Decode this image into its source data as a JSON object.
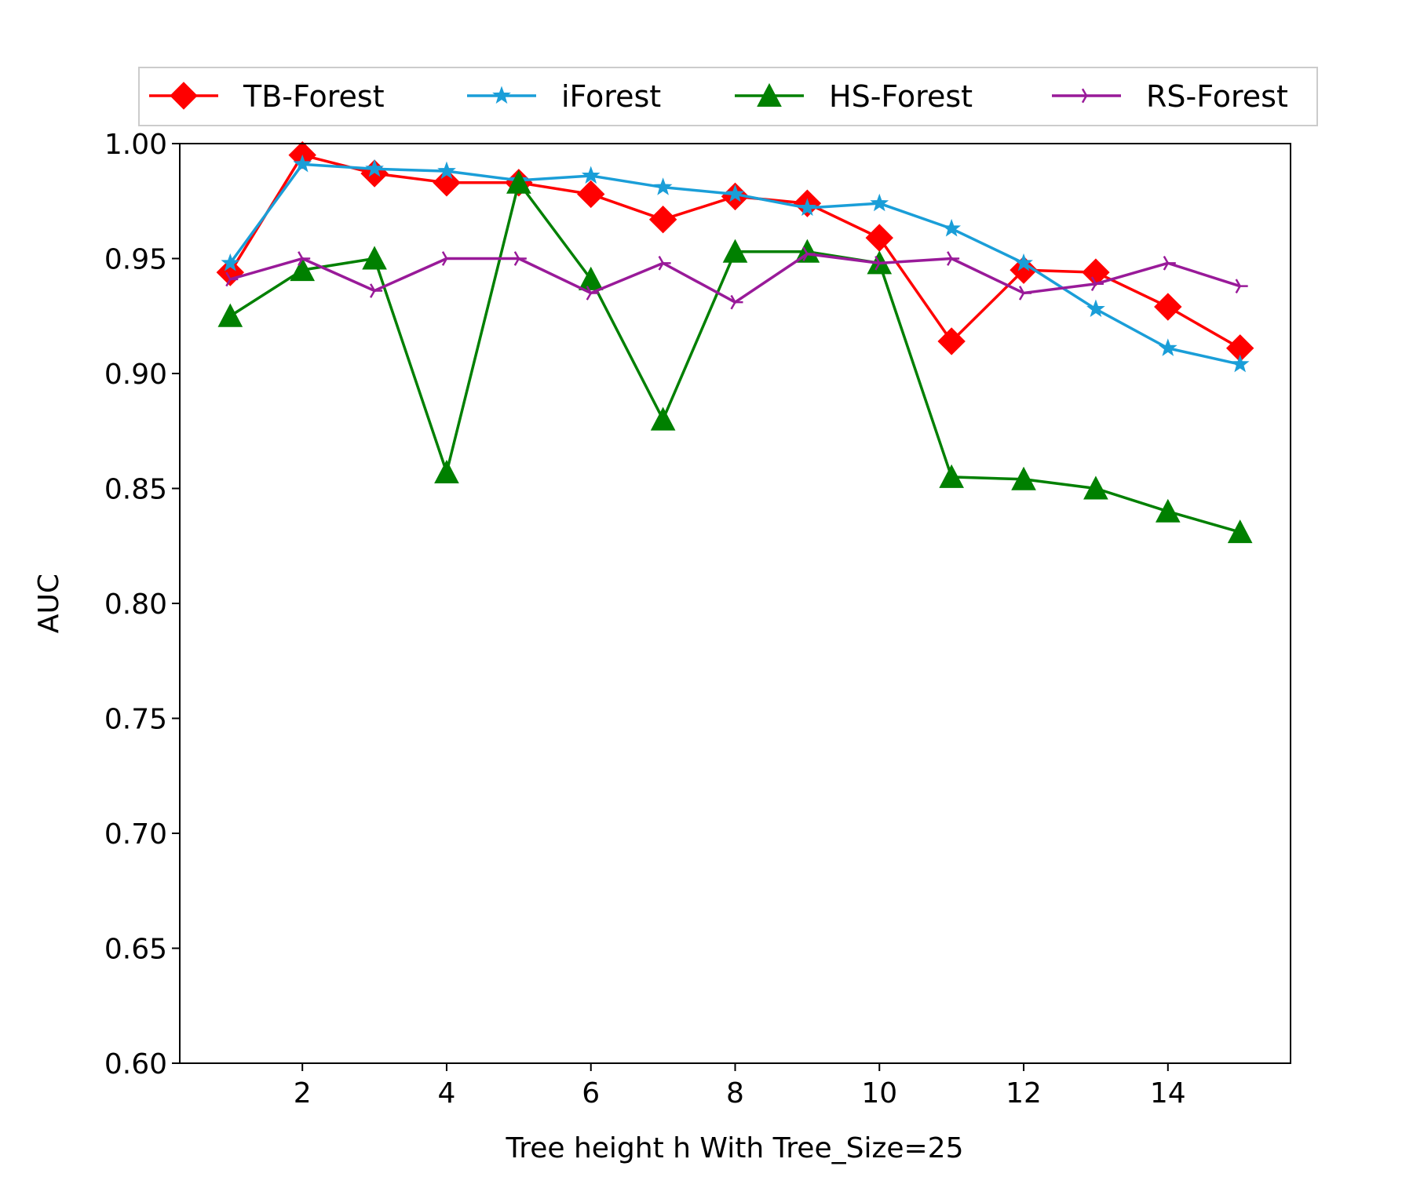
{
  "chart_data": {
    "type": "line",
    "title": "",
    "xlabel": "Tree height h With Tree_Size=25",
    "ylabel": "AUC",
    "xlim": [
      0.3,
      15.7
    ],
    "ylim": [
      0.6,
      1.0
    ],
    "xticks": [
      2,
      4,
      6,
      8,
      10,
      12,
      14
    ],
    "xtick_labels": [
      "2",
      "4",
      "6",
      "8",
      "10",
      "12",
      "14"
    ],
    "yticks": [
      0.6,
      0.65,
      0.7,
      0.75,
      0.8,
      0.85,
      0.9,
      0.95,
      1.0
    ],
    "ytick_labels": [
      "0.60",
      "0.65",
      "0.70",
      "0.75",
      "0.80",
      "0.85",
      "0.90",
      "0.95",
      "1.00"
    ],
    "grid": false,
    "legend_position": "top",
    "x": [
      1,
      2,
      3,
      4,
      5,
      6,
      7,
      8,
      9,
      10,
      11,
      12,
      13,
      14,
      15
    ],
    "series": [
      {
        "name": "TB-Forest",
        "color": "#ff0000",
        "marker": "diamond",
        "values": [
          0.944,
          0.995,
          0.987,
          0.983,
          0.983,
          0.978,
          0.967,
          0.977,
          0.974,
          0.959,
          0.914,
          0.945,
          0.944,
          0.929,
          0.911
        ]
      },
      {
        "name": "iForest",
        "color": "#1a9ed8",
        "marker": "star",
        "values": [
          0.948,
          0.991,
          0.989,
          0.988,
          0.984,
          0.986,
          0.981,
          0.978,
          0.972,
          0.974,
          0.963,
          0.948,
          0.928,
          0.911,
          0.904
        ]
      },
      {
        "name": "HS-Forest",
        "color": "#008000",
        "marker": "triangle",
        "values": [
          0.925,
          0.945,
          0.95,
          0.857,
          0.983,
          0.941,
          0.88,
          0.953,
          0.953,
          0.948,
          0.855,
          0.854,
          0.85,
          0.84,
          0.831
        ]
      },
      {
        "name": "RS-Forest",
        "color": "#991a99",
        "marker": "tri",
        "values": [
          0.941,
          0.95,
          0.936,
          0.95,
          0.95,
          0.935,
          0.948,
          0.931,
          0.952,
          0.948,
          0.95,
          0.935,
          0.939,
          0.948,
          0.938
        ]
      }
    ]
  }
}
